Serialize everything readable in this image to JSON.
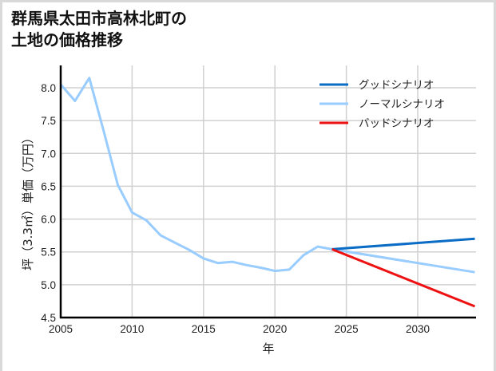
{
  "title_line1": "群馬県太田市高林北町の",
  "title_line2": "土地の価格推移",
  "chart_data": {
    "type": "line",
    "title": "群馬県太田市高林北町の土地の価格推移",
    "xlabel": "年",
    "ylabel": "坪（3.3㎡）単価（万円）",
    "xlim": [
      2005,
      2034
    ],
    "ylim": [
      4.5,
      8.3
    ],
    "xticks": [
      2005,
      2010,
      2015,
      2020,
      2025,
      2030
    ],
    "yticks": [
      4.5,
      5.0,
      5.5,
      6.0,
      6.5,
      7.0,
      7.5,
      8.0
    ],
    "ytick_labels": [
      "4.5",
      "5.0",
      "5.5",
      "6.0",
      "6.5",
      "7.0",
      "7.5",
      "8.0"
    ],
    "grid": true,
    "legend_position": "upper right",
    "series": [
      {
        "name": "グッドシナリオ",
        "color": "#0a6cc4",
        "x": [
          2024,
          2034
        ],
        "values": [
          5.54,
          5.7
        ]
      },
      {
        "name": "ノーマルシナリオ",
        "color": "#99ccff",
        "x": [
          2005,
          2006,
          2007,
          2008,
          2009,
          2010,
          2011,
          2012,
          2013,
          2014,
          2015,
          2016,
          2017,
          2018,
          2019,
          2020,
          2021,
          2022,
          2023,
          2024,
          2034
        ],
        "values": [
          8.05,
          7.8,
          8.15,
          7.35,
          6.52,
          6.1,
          5.98,
          5.75,
          5.64,
          5.53,
          5.4,
          5.33,
          5.35,
          5.3,
          5.26,
          5.21,
          5.23,
          5.45,
          5.58,
          5.54,
          5.19
        ]
      },
      {
        "name": "バッドシナリオ",
        "color": "#ee1111",
        "x": [
          2024,
          2034
        ],
        "values": [
          5.54,
          4.67
        ]
      }
    ]
  }
}
